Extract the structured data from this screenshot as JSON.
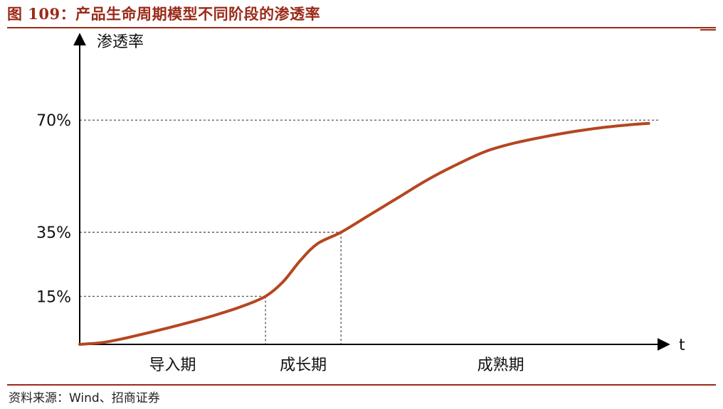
{
  "title": "图 109：产品生命周期模型不同阶段的渗透率",
  "source": "资料来源：Wind、招商证券",
  "colors": {
    "accent": "#9a2a18",
    "curve": "#b5461f",
    "axis": "#000000",
    "guide": "#444444"
  },
  "chart_data": {
    "type": "line",
    "ylabel": "渗透率",
    "xlabel": "t",
    "yticks": [
      {
        "value": 15,
        "label": "15%"
      },
      {
        "value": 35,
        "label": "35%"
      },
      {
        "value": 70,
        "label": "70%"
      }
    ],
    "phases": [
      "导入期",
      "成长期",
      "成熟期"
    ],
    "phase_boundaries": [
      3.2,
      4.5
    ],
    "xlim": [
      0,
      10
    ],
    "ylim": [
      0,
      88
    ],
    "series": [
      {
        "values": [
          [
            0,
            0
          ],
          [
            0.4,
            0.6
          ],
          [
            0.8,
            2.0
          ],
          [
            1.2,
            3.7
          ],
          [
            1.6,
            5.5
          ],
          [
            2.0,
            7.4
          ],
          [
            2.4,
            9.5
          ],
          [
            2.8,
            11.9
          ],
          [
            3.2,
            15
          ],
          [
            3.5,
            19.5
          ],
          [
            3.8,
            26.2
          ],
          [
            4.1,
            31.5
          ],
          [
            4.5,
            35
          ],
          [
            5.0,
            40.5
          ],
          [
            5.5,
            46
          ],
          [
            6.0,
            51.5
          ],
          [
            6.5,
            56.2
          ],
          [
            7.0,
            60.3
          ],
          [
            7.5,
            62.9
          ],
          [
            8.0,
            64.8
          ],
          [
            8.5,
            66.4
          ],
          [
            9.0,
            67.7
          ],
          [
            9.5,
            68.6
          ],
          [
            9.8,
            69.0
          ]
        ]
      }
    ]
  }
}
